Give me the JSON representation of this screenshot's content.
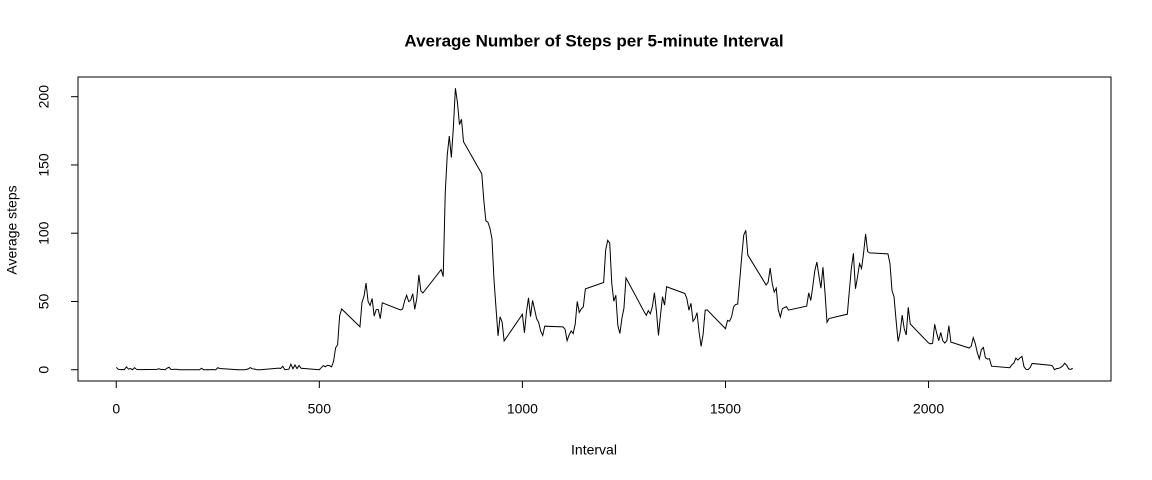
{
  "chart_data": {
    "type": "line",
    "title": "Average Number of Steps per 5-minute Interval",
    "x_label": "Interval",
    "y_label": "Average steps",
    "color": "#000000",
    "xlim": [
      -94.2,
      2449.2
    ],
    "ylim": [
      -8.25,
      214.42
    ],
    "xticks": [
      0,
      500,
      1000,
      1500,
      2000
    ],
    "yticks": [
      0,
      50,
      100,
      150,
      200
    ],
    "x": [
      0,
      5,
      10,
      15,
      20,
      25,
      30,
      35,
      40,
      45,
      50,
      55,
      100,
      105,
      110,
      115,
      120,
      125,
      130,
      135,
      140,
      145,
      150,
      155,
      200,
      205,
      210,
      215,
      220,
      225,
      230,
      235,
      240,
      245,
      250,
      255,
      300,
      305,
      310,
      315,
      320,
      325,
      330,
      335,
      340,
      345,
      350,
      355,
      400,
      405,
      410,
      415,
      420,
      425,
      430,
      435,
      440,
      445,
      450,
      455,
      500,
      505,
      510,
      515,
      520,
      525,
      530,
      535,
      540,
      545,
      550,
      555,
      600,
      605,
      610,
      615,
      620,
      625,
      630,
      635,
      640,
      645,
      650,
      655,
      700,
      705,
      710,
      715,
      720,
      725,
      730,
      735,
      740,
      745,
      750,
      755,
      800,
      805,
      810,
      815,
      820,
      825,
      830,
      835,
      840,
      845,
      850,
      855,
      900,
      905,
      910,
      915,
      920,
      925,
      930,
      935,
      940,
      945,
      950,
      955,
      1000,
      1005,
      1010,
      1015,
      1020,
      1025,
      1030,
      1035,
      1040,
      1045,
      1050,
      1055,
      1100,
      1105,
      1110,
      1115,
      1120,
      1125,
      1130,
      1135,
      1140,
      1145,
      1150,
      1155,
      1200,
      1205,
      1210,
      1215,
      1220,
      1225,
      1230,
      1235,
      1240,
      1245,
      1250,
      1255,
      1300,
      1305,
      1310,
      1315,
      1320,
      1325,
      1330,
      1335,
      1340,
      1345,
      1350,
      1355,
      1400,
      1405,
      1410,
      1415,
      1420,
      1425,
      1430,
      1435,
      1440,
      1445,
      1450,
      1455,
      1500,
      1505,
      1510,
      1515,
      1520,
      1525,
      1530,
      1535,
      1540,
      1545,
      1550,
      1555,
      1600,
      1605,
      1610,
      1615,
      1620,
      1625,
      1630,
      1635,
      1640,
      1645,
      1650,
      1655,
      1700,
      1705,
      1710,
      1715,
      1720,
      1725,
      1730,
      1735,
      1740,
      1745,
      1750,
      1755,
      1800,
      1805,
      1810,
      1815,
      1820,
      1825,
      1830,
      1835,
      1840,
      1845,
      1850,
      1855,
      1900,
      1905,
      1910,
      1915,
      1920,
      1925,
      1930,
      1935,
      1940,
      1945,
      1950,
      1955,
      2000,
      2005,
      2010,
      2015,
      2020,
      2025,
      2030,
      2035,
      2040,
      2045,
      2050,
      2055,
      2100,
      2105,
      2110,
      2115,
      2120,
      2125,
      2130,
      2135,
      2140,
      2145,
      2150,
      2155,
      2200,
      2205,
      2210,
      2215,
      2220,
      2225,
      2230,
      2235,
      2240,
      2245,
      2250,
      2255,
      2300,
      2305,
      2310,
      2315,
      2320,
      2325,
      2330,
      2335,
      2340,
      2345,
      2350,
      2355
    ],
    "values": [
      1.7,
      0.3,
      0.1,
      0.2,
      0.1,
      2.1,
      0.5,
      0.9,
      0,
      1.5,
      0.3,
      0.1,
      0.3,
      0.7,
      0.2,
      0.3,
      0,
      1.1,
      1.8,
      0.2,
      0.2,
      0.4,
      0.3,
      0,
      0,
      0,
      1.1,
      0,
      0,
      0.1,
      0,
      0.2,
      0,
      0,
      1.5,
      0.9,
      0,
      0,
      0,
      0,
      0.2,
      0.6,
      1.6,
      0.6,
      0.5,
      0.1,
      0,
      0,
      1.2,
      0.9,
      2.6,
      0,
      0.3,
      0.4,
      4.1,
      0.7,
      3.5,
      0.8,
      3.1,
      1.1,
      0,
      1.6,
      3,
      2.2,
      3.3,
      3,
      2.1,
      6.1,
      16,
      18.3,
      39.5,
      44.5,
      31.5,
      49.3,
      53.8,
      63.5,
      50,
      47.1,
      52.2,
      39.3,
      44,
      44.2,
      37.4,
      49,
      43.8,
      44.4,
      50.5,
      54.5,
      49.9,
      51,
      55.7,
      44.3,
      52.3,
      69.5,
      57.8,
      56.2,
      73.4,
      68.2,
      129.4,
      157.5,
      171.2,
      155.4,
      177.3,
      206.2,
      195.9,
      179.6,
      183.4,
      167,
      143.5,
      124,
      109.1,
      108.1,
      103.7,
      96,
      66.2,
      45.2,
      24.8,
      38.8,
      35,
      21.1,
      40.6,
      27,
      42.4,
      52.7,
      38.9,
      50.8,
      44.3,
      37.4,
      34.7,
      28.3,
      25.1,
      31.9,
      31.4,
      29.7,
      21.3,
      25.5,
      28.4,
      26.5,
      33.4,
      50,
      42,
      44.6,
      46,
      59.2,
      63.9,
      87.7,
      94.8,
      92.8,
      63.4,
      50.2,
      54.5,
      32.4,
      26.5,
      37.7,
      45.1,
      67.3,
      42.3,
      39.9,
      43.3,
      41,
      46.2,
      56.4,
      42.8,
      25.1,
      40,
      53.5,
      47.3,
      60.8,
      55.8,
      52,
      43.6,
      48.7,
      35.5,
      37.5,
      41.8,
      27.5,
      17.1,
      26.1,
      43.6,
      43.8,
      30,
      36.1,
      35.5,
      38.8,
      46,
      47.8,
      48.1,
      65.3,
      82.9,
      98.7,
      102.1,
      84,
      62.1,
      64.1,
      74.5,
      63.2,
      56.9,
      59.8,
      43.9,
      38.6,
      44.7,
      45.5,
      46.2,
      43.7,
      46.6,
      56.3,
      50.7,
      61.2,
      72.7,
      78.9,
      68.9,
      59.7,
      75.1,
      56.5,
      34.8,
      37.5,
      40.7,
      58,
      74.7,
      85.3,
      59.3,
      67.8,
      77.7,
      74.2,
      85.3,
      99.5,
      86.6,
      85.6,
      84.9,
      77.8,
      58,
      53.4,
      36.3,
      20.7,
      27.4,
      40,
      30.2,
      25.5,
      45.7,
      33.5,
      19.6,
      19,
      19.3,
      33.3,
      26.8,
      21.2,
      27.3,
      21.3,
      19.5,
      21.3,
      32.3,
      20.2,
      15.9,
      17.2,
      23.5,
      19.2,
      12.5,
      8,
      14.7,
      16.3,
      8.7,
      7.8,
      8.1,
      2.6,
      1.5,
      3.7,
      4.8,
      8.5,
      7.1,
      8.7,
      9.8,
      2.2,
      0.3,
      0.1,
      1.6,
      4.6,
      3.3,
      2.8,
      0,
      0.8,
      1,
      1.6,
      2.6,
      4.7,
      3.3,
      0.6,
      0.2,
      1.1
    ]
  }
}
